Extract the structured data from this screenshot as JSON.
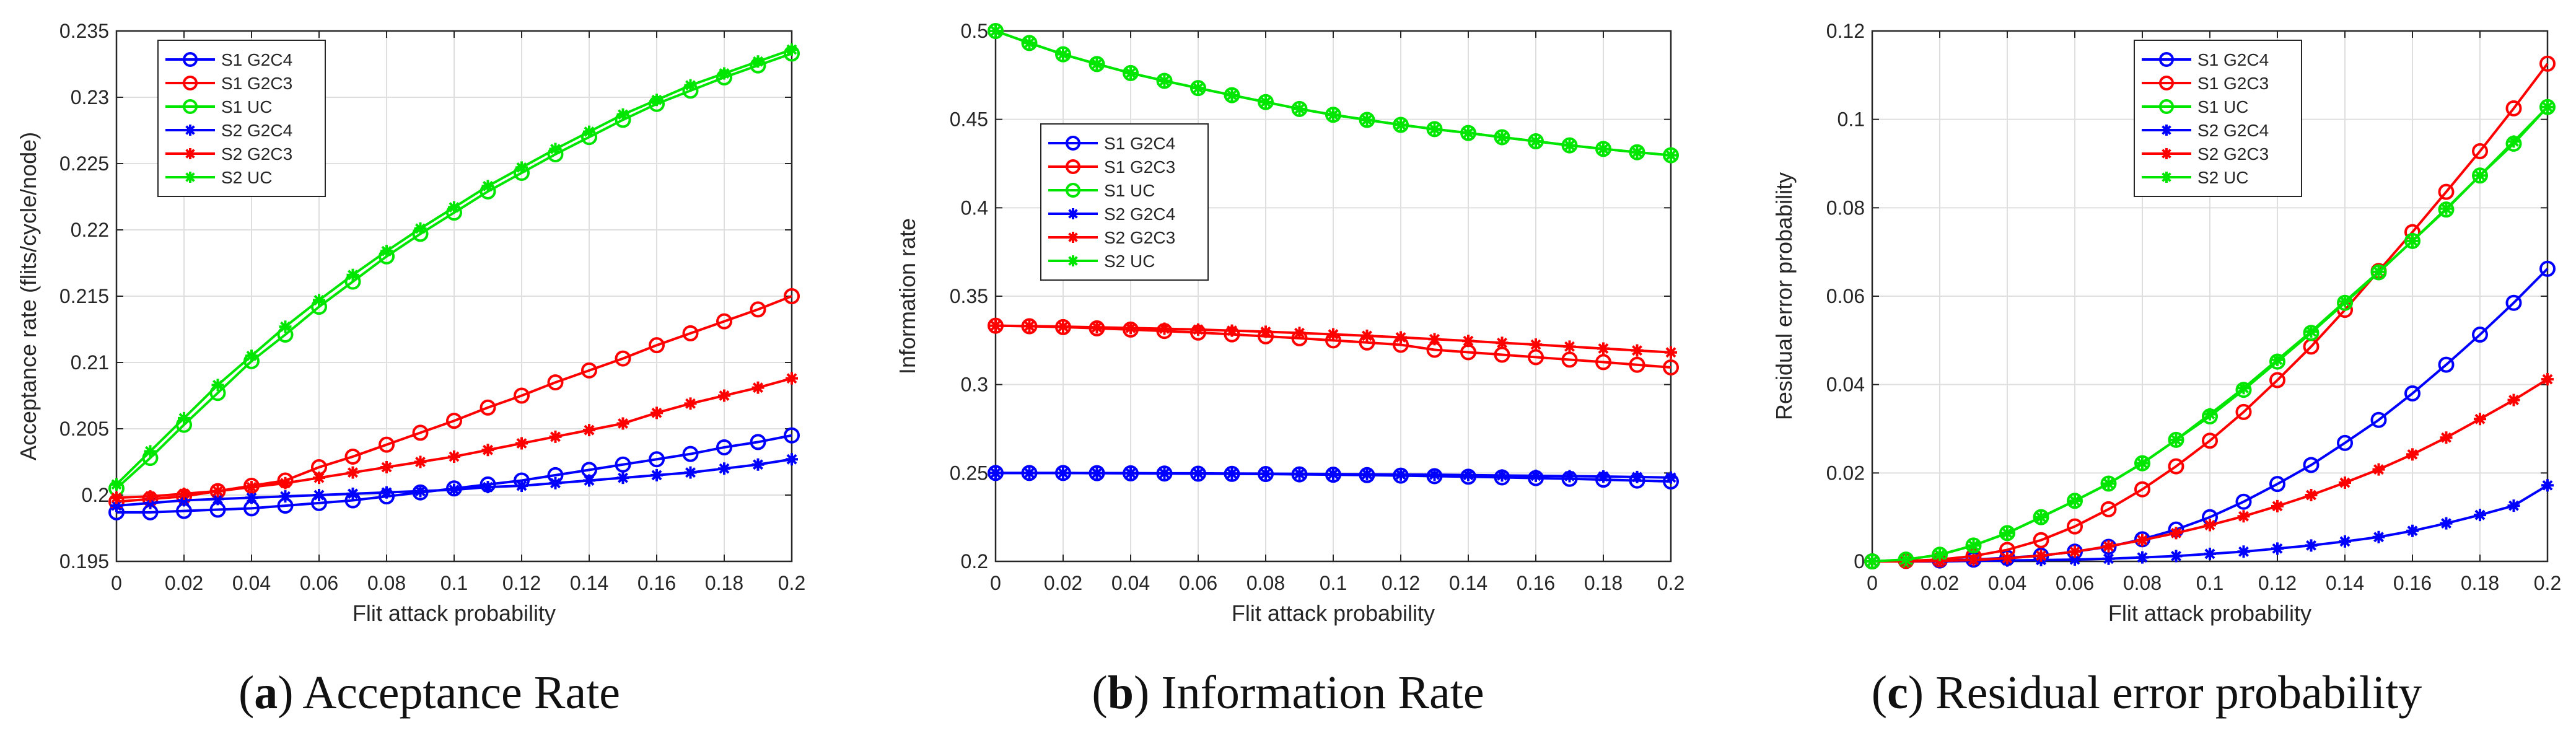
{
  "colors": {
    "blue": "#0000ff",
    "red": "#ff0000",
    "green": "#00e600",
    "axis": "#262626",
    "grid": "#dfdfdf"
  },
  "chart_data": [
    {
      "type": "line",
      "caption": {
        "letter": "a",
        "title": "Acceptance Rate"
      },
      "xlabel": "Flit attack probability",
      "ylabel": "Acceptance rate (flits/cycle/node)",
      "xlim": [
        0,
        0.2
      ],
      "ylim": [
        0.195,
        0.235
      ],
      "xticks": [
        0,
        0.02,
        0.04,
        0.06,
        0.08,
        0.1,
        0.12,
        0.14,
        0.16,
        0.18,
        0.2
      ],
      "xtick_labels": [
        "0",
        "0.02",
        "0.04",
        "0.06",
        "0.08",
        "0.1",
        "0.12",
        "0.14",
        "0.16",
        "0.18",
        "0.2"
      ],
      "yticks": [
        0.195,
        0.2,
        0.205,
        0.21,
        0.215,
        0.22,
        0.225,
        0.23,
        0.235
      ],
      "ytick_labels": [
        "0.195",
        "0.2",
        "0.205",
        "0.21",
        "0.215",
        "0.22",
        "0.225",
        "0.23",
        "0.235"
      ],
      "grid": true,
      "legend_position": "top-left",
      "x": [
        0,
        0.01,
        0.02,
        0.03,
        0.04,
        0.05,
        0.06,
        0.07,
        0.08,
        0.09,
        0.1,
        0.11,
        0.12,
        0.13,
        0.14,
        0.15,
        0.16,
        0.17,
        0.18,
        0.19,
        0.2
      ],
      "series": [
        {
          "name": "S1 G2C4",
          "color": "blue",
          "marker": "o",
          "values": [
            0.1987,
            0.1987,
            0.1988,
            0.1989,
            0.199,
            0.1992,
            0.1994,
            0.1996,
            0.1999,
            0.2002,
            0.2005,
            0.2008,
            0.2011,
            0.2015,
            0.2019,
            0.2023,
            0.2027,
            0.2031,
            0.2036,
            0.204,
            0.2045
          ]
        },
        {
          "name": "S1 G2C3",
          "color": "red",
          "marker": "o",
          "values": [
            0.1995,
            0.1997,
            0.1999,
            0.2003,
            0.2007,
            0.2011,
            0.2021,
            0.2029,
            0.2038,
            0.2047,
            0.2056,
            0.2066,
            0.2075,
            0.2085,
            0.2094,
            0.2103,
            0.2113,
            0.2122,
            0.2131,
            0.214,
            0.215
          ]
        },
        {
          "name": "S1 UC",
          "color": "green",
          "marker": "o",
          "values": [
            0.2005,
            0.2028,
            0.2053,
            0.2077,
            0.2101,
            0.2121,
            0.2142,
            0.2161,
            0.218,
            0.2197,
            0.2213,
            0.2229,
            0.2243,
            0.2257,
            0.227,
            0.2283,
            0.2295,
            0.2305,
            0.2315,
            0.2324,
            0.2333
          ]
        },
        {
          "name": "S2 G2C4",
          "color": "blue",
          "marker": "*",
          "values": [
            0.1992,
            0.1994,
            0.1996,
            0.1997,
            0.1998,
            0.1999,
            0.2,
            0.2001,
            0.2002,
            0.2003,
            0.2004,
            0.2006,
            0.2007,
            0.2009,
            0.2011,
            0.2013,
            0.2015,
            0.2017,
            0.202,
            0.2023,
            0.2027
          ]
        },
        {
          "name": "S2 G2C3",
          "color": "red",
          "marker": "*",
          "values": [
            0.1998,
            0.1999,
            0.2001,
            0.2003,
            0.2006,
            0.2009,
            0.2013,
            0.2017,
            0.2021,
            0.2025,
            0.2029,
            0.2034,
            0.2039,
            0.2044,
            0.2049,
            0.2054,
            0.2062,
            0.2069,
            0.2075,
            0.2081,
            0.2088
          ]
        },
        {
          "name": "S2 UC",
          "color": "green",
          "marker": "*",
          "values": [
            0.2008,
            0.2033,
            0.2058,
            0.2083,
            0.2105,
            0.2127,
            0.2147,
            0.2166,
            0.2184,
            0.2201,
            0.2217,
            0.2233,
            0.2247,
            0.2261,
            0.2274,
            0.2287,
            0.2298,
            0.2309,
            0.2318,
            0.2327,
            0.2336
          ]
        }
      ]
    },
    {
      "type": "line",
      "caption": {
        "letter": "b",
        "title": "Information Rate"
      },
      "xlabel": "Flit attack probability",
      "ylabel": "Information rate",
      "xlim": [
        0,
        0.2
      ],
      "ylim": [
        0.2,
        0.5
      ],
      "xticks": [
        0,
        0.02,
        0.04,
        0.06,
        0.08,
        0.1,
        0.12,
        0.14,
        0.16,
        0.18,
        0.2
      ],
      "xtick_labels": [
        "0",
        "0.02",
        "0.04",
        "0.06",
        "0.08",
        "0.1",
        "0.12",
        "0.14",
        "0.16",
        "0.18",
        "0.2"
      ],
      "yticks": [
        0.2,
        0.25,
        0.3,
        0.35,
        0.4,
        0.45,
        0.5
      ],
      "ytick_labels": [
        "0.2",
        "0.25",
        "0.3",
        "0.35",
        "0.4",
        "0.45",
        "0.5"
      ],
      "grid": true,
      "legend_position": "middle-left",
      "x": [
        0,
        0.01,
        0.02,
        0.03,
        0.04,
        0.05,
        0.06,
        0.07,
        0.08,
        0.09,
        0.1,
        0.11,
        0.12,
        0.13,
        0.14,
        0.15,
        0.16,
        0.17,
        0.18,
        0.19,
        0.2
      ],
      "series": [
        {
          "name": "S1 G2C4",
          "color": "blue",
          "marker": "o",
          "values": [
            0.25,
            0.25,
            0.25,
            0.2499,
            0.2498,
            0.2497,
            0.2496,
            0.2495,
            0.2494,
            0.2492,
            0.249,
            0.2488,
            0.2485,
            0.2482,
            0.2479,
            0.2475,
            0.2471,
            0.2467,
            0.2462,
            0.2457,
            0.2452
          ]
        },
        {
          "name": "S1 G2C3",
          "color": "red",
          "marker": "o",
          "values": [
            0.3333,
            0.333,
            0.3325,
            0.3318,
            0.3311,
            0.3303,
            0.3294,
            0.3284,
            0.3273,
            0.3262,
            0.325,
            0.3238,
            0.3225,
            0.3197,
            0.3183,
            0.3169,
            0.3155,
            0.3141,
            0.3127,
            0.3112,
            0.3097
          ]
        },
        {
          "name": "S1 UC",
          "color": "green",
          "marker": "o",
          "values": [
            0.5,
            0.4932,
            0.4868,
            0.4813,
            0.4762,
            0.4718,
            0.4677,
            0.4637,
            0.4598,
            0.4559,
            0.4526,
            0.4497,
            0.4469,
            0.4445,
            0.4423,
            0.4399,
            0.4376,
            0.4353,
            0.4333,
            0.4314,
            0.4297
          ]
        },
        {
          "name": "S2 G2C4",
          "color": "blue",
          "marker": "*",
          "values": [
            0.25,
            0.25,
            0.25,
            0.2499,
            0.2499,
            0.2498,
            0.2498,
            0.2497,
            0.2496,
            0.2495,
            0.2494,
            0.2493,
            0.2491,
            0.249,
            0.2488,
            0.2486,
            0.2484,
            0.2482,
            0.248,
            0.2477,
            0.2474
          ]
        },
        {
          "name": "S2 G2C3",
          "color": "red",
          "marker": "*",
          "values": [
            0.3333,
            0.3331,
            0.3328,
            0.3324,
            0.332,
            0.3316,
            0.3311,
            0.3305,
            0.3299,
            0.3292,
            0.3284,
            0.3276,
            0.3267,
            0.3257,
            0.3247,
            0.3236,
            0.3226,
            0.3215,
            0.3204,
            0.3193,
            0.3182
          ]
        },
        {
          "name": "S2 UC",
          "color": "green",
          "marker": "*",
          "values": [
            0.5,
            0.4932,
            0.4868,
            0.4813,
            0.4762,
            0.4718,
            0.4677,
            0.4637,
            0.4598,
            0.4559,
            0.4526,
            0.4497,
            0.4469,
            0.4445,
            0.4423,
            0.4399,
            0.4376,
            0.4353,
            0.4333,
            0.4314,
            0.4297
          ]
        }
      ]
    },
    {
      "type": "line",
      "caption": {
        "letter": "c",
        "title": "Residual error probability"
      },
      "xlabel": "Flit attack probability",
      "ylabel": "Residual error probability",
      "xlim": [
        0,
        0.2
      ],
      "ylim": [
        0,
        0.12
      ],
      "xticks": [
        0,
        0.02,
        0.04,
        0.06,
        0.08,
        0.1,
        0.12,
        0.14,
        0.16,
        0.18,
        0.2
      ],
      "xtick_labels": [
        "0",
        "0.02",
        "0.04",
        "0.06",
        "0.08",
        "0.1",
        "0.12",
        "0.14",
        "0.16",
        "0.18",
        "0.2"
      ],
      "yticks": [
        0,
        0.02,
        0.04,
        0.06,
        0.08,
        0.1,
        0.12
      ],
      "ytick_labels": [
        "0",
        "0.02",
        "0.04",
        "0.06",
        "0.08",
        "0.1",
        "0.12"
      ],
      "grid": true,
      "legend_position": "top-center",
      "x": [
        0,
        0.01,
        0.02,
        0.03,
        0.04,
        0.05,
        0.06,
        0.07,
        0.08,
        0.09,
        0.1,
        0.11,
        0.12,
        0.13,
        0.14,
        0.15,
        0.16,
        0.17,
        0.18,
        0.19,
        0.2
      ],
      "series": [
        {
          "name": "S1 G2C4",
          "color": "blue",
          "marker": "o",
          "values": [
            0,
            0.0001,
            0.0002,
            0.0004,
            0.0008,
            0.0013,
            0.0022,
            0.0033,
            0.005,
            0.0072,
            0.01,
            0.0135,
            0.0175,
            0.0218,
            0.0268,
            0.032,
            0.038,
            0.0445,
            0.0513,
            0.0585,
            0.0662
          ]
        },
        {
          "name": "S1 G2C3",
          "color": "red",
          "marker": "o",
          "values": [
            0,
            0.0001,
            0.0004,
            0.0012,
            0.0026,
            0.0048,
            0.0079,
            0.0118,
            0.0163,
            0.0215,
            0.0273,
            0.0338,
            0.041,
            0.0486,
            0.0569,
            0.0657,
            0.0745,
            0.0836,
            0.0928,
            0.1025,
            0.1126
          ]
        },
        {
          "name": "S1 UC",
          "color": "green",
          "marker": "o",
          "values": [
            0,
            0.0004,
            0.0015,
            0.0036,
            0.0064,
            0.01,
            0.0137,
            0.0176,
            0.0222,
            0.0275,
            0.0328,
            0.0388,
            0.0452,
            0.0517,
            0.0585,
            0.0654,
            0.0725,
            0.0796,
            0.0873,
            0.0945,
            0.1028
          ]
        },
        {
          "name": "S2 G2C4",
          "color": "blue",
          "marker": "*",
          "values": [
            0,
            0,
            0,
            0.0001,
            0.0002,
            0.0003,
            0.0004,
            0.0006,
            0.0009,
            0.0012,
            0.0017,
            0.0022,
            0.0029,
            0.0036,
            0.0045,
            0.0055,
            0.0069,
            0.0086,
            0.0105,
            0.0126,
            0.0172
          ]
        },
        {
          "name": "S2 G2C3",
          "color": "red",
          "marker": "*",
          "values": [
            0,
            0,
            0.0001,
            0.0003,
            0.0007,
            0.0013,
            0.0022,
            0.0034,
            0.0048,
            0.0064,
            0.0082,
            0.0102,
            0.0125,
            0.015,
            0.0178,
            0.0208,
            0.0242,
            0.028,
            0.0322,
            0.0365,
            0.0412
          ]
        },
        {
          "name": "S2 UC",
          "color": "green",
          "marker": "*",
          "values": [
            0,
            0.0004,
            0.0015,
            0.0036,
            0.0064,
            0.01,
            0.0137,
            0.0176,
            0.0222,
            0.0275,
            0.0333,
            0.0392,
            0.0456,
            0.052,
            0.0588,
            0.0655,
            0.0725,
            0.0798,
            0.0873,
            0.095,
            0.1028
          ]
        }
      ]
    }
  ]
}
